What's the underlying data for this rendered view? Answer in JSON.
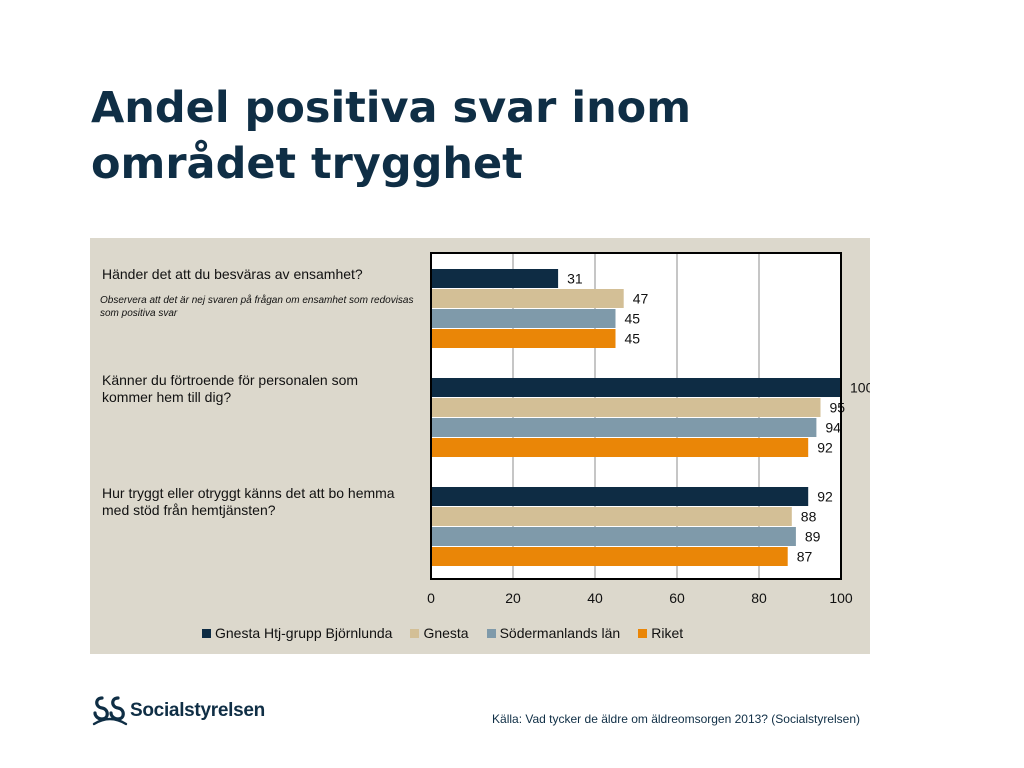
{
  "title": "Andel positiva svar inom området trygghet",
  "chart_data": {
    "type": "bar",
    "orientation": "horizontal",
    "categories": [
      {
        "label": "Händer det att du besväras av ensamhet?",
        "note": "Observera att det är nej svaren på frågan om ensamhet som redovisas som positiva svar"
      },
      {
        "label": "Känner du förtroende för personalen som kommer hem till dig?",
        "note": ""
      },
      {
        "label": "Hur tryggt eller otryggt känns det att bo hemma med stöd från hemtjänsten?",
        "note": ""
      }
    ],
    "series": [
      {
        "name": "Gnesta Htj-grupp Björnlunda",
        "color": "#0e2c44",
        "values": [
          31,
          100,
          92
        ]
      },
      {
        "name": "Gnesta",
        "color": "#d3bf96",
        "values": [
          47,
          95,
          88
        ]
      },
      {
        "name": "Södermanlands län",
        "color": "#7f9aaa",
        "values": [
          45,
          94,
          89
        ]
      },
      {
        "name": "Riket",
        "color": "#ea8607",
        "values": [
          45,
          92,
          87
        ]
      }
    ],
    "xlim": [
      0,
      100
    ],
    "xticks": [
      0,
      20,
      40,
      60,
      80,
      100
    ],
    "grid": "vertical",
    "legend_position": "bottom"
  },
  "logo": {
    "text": "Socialstyrelsen"
  },
  "source": "Källa: Vad tycker de äldre om äldreomsorgen 2013? (Socialstyrelsen)"
}
